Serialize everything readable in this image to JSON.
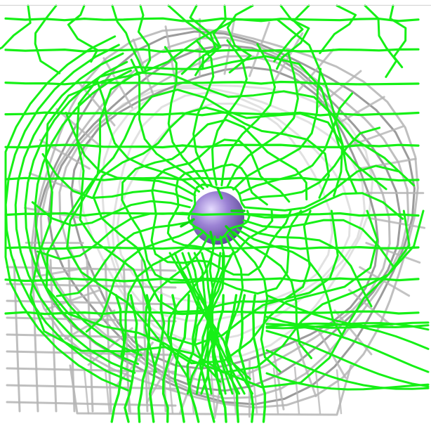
{
  "scene": {
    "background_color": "#ffffff",
    "ion": {
      "color": "#9b82d4",
      "highlight_color": "#e6dcff",
      "shadow_color": "#5a4690"
    },
    "density_mesh": {
      "color": "#16f016",
      "edge_color": "#0fd60f"
    },
    "reference_mesh": {
      "color": "#b4b4b4",
      "dark_color": "#8a8a8a",
      "faint_color": "#dedede"
    }
  }
}
